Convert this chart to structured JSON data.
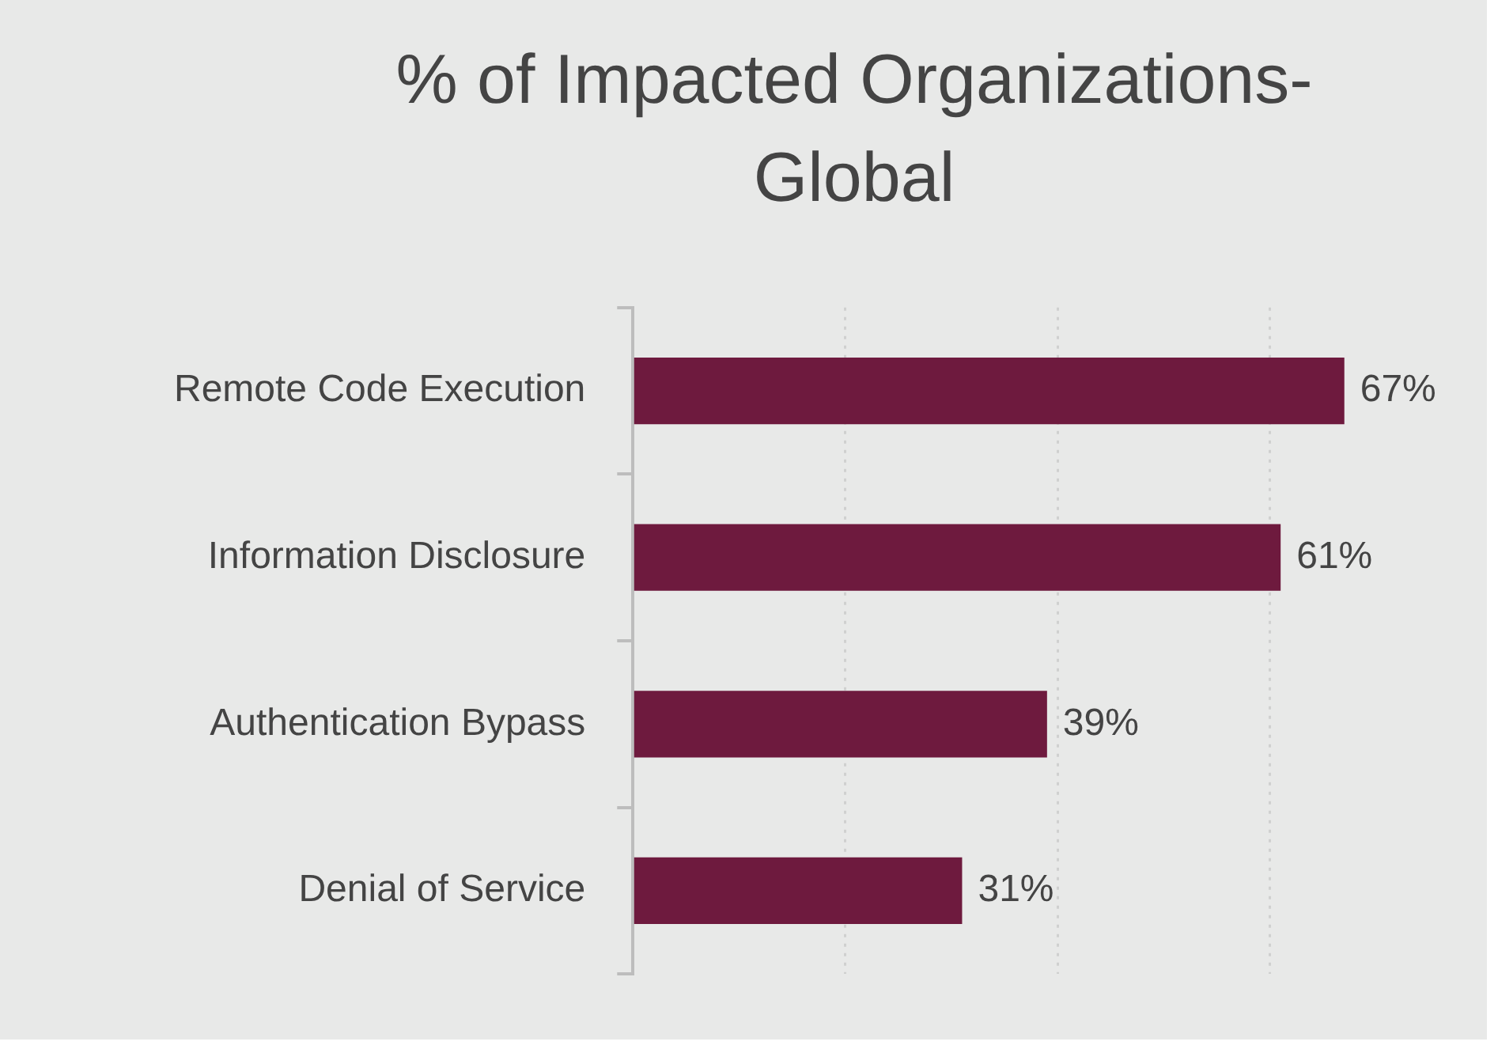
{
  "chart_data": {
    "type": "bar",
    "orientation": "horizontal",
    "title": "% of Impacted Organizations-Global",
    "categories": [
      "Remote Code Execution",
      "Information Disclosure",
      "Authentication Bypass",
      "Denial of Service"
    ],
    "values": [
      67,
      61,
      39,
      31
    ],
    "value_labels": [
      "67%",
      "61%",
      "39%",
      "31%"
    ],
    "color": "#6e1a3e",
    "xticks": [
      {
        "value": 0,
        "label": null
      },
      {
        "value": 20,
        "label": null
      },
      {
        "value": 40,
        "label": null
      },
      {
        "value": 60,
        "label": null
      }
    ],
    "grid": "x",
    "tick_labels": "y",
    "legend": false
  }
}
